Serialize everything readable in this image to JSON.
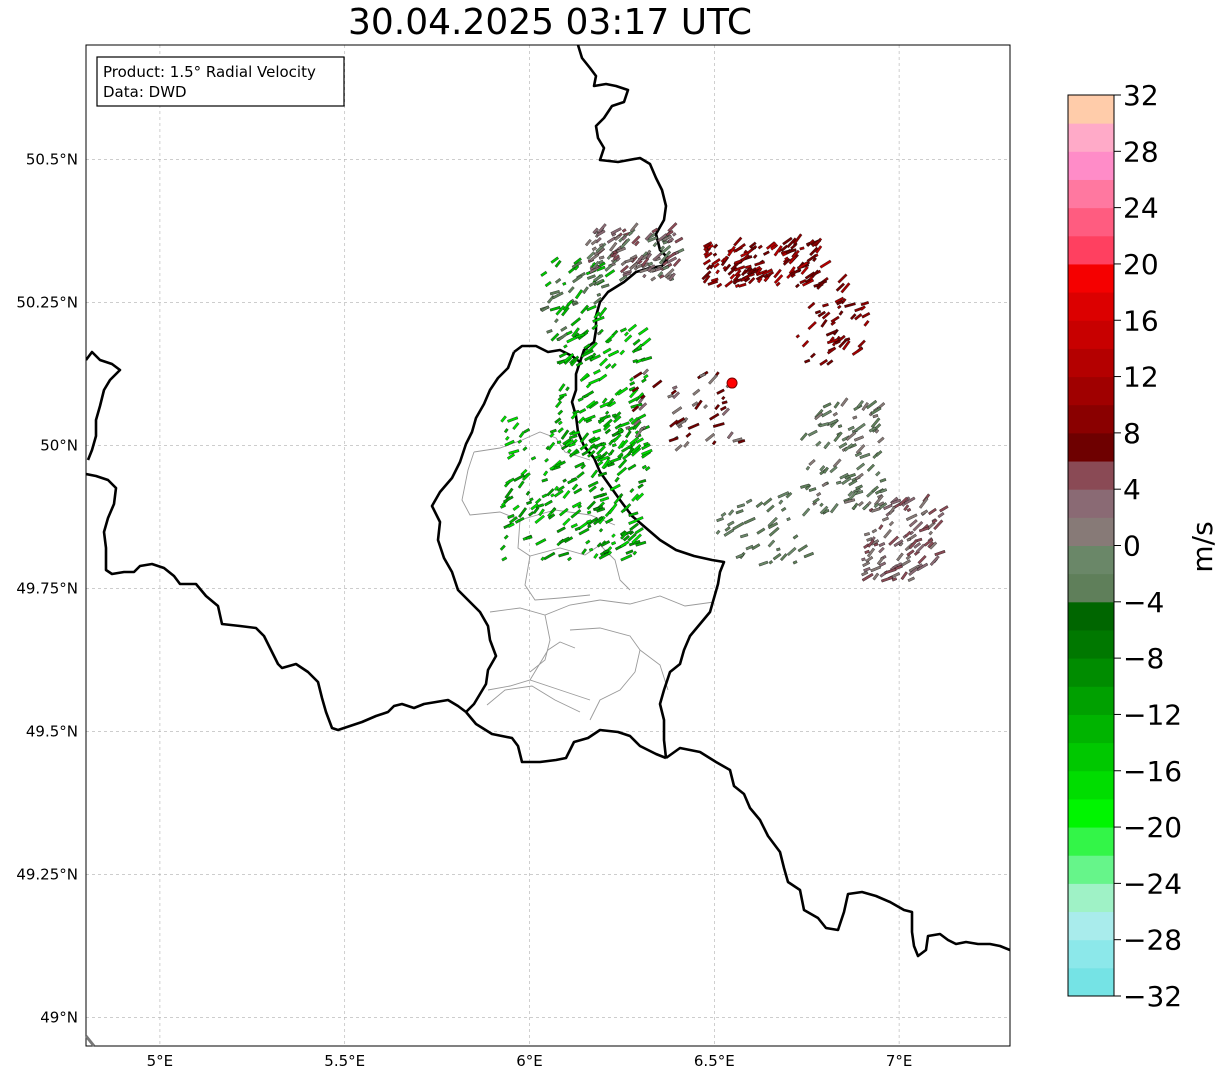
{
  "title": "30.04.2025 03:17 UTC",
  "info_box": {
    "product": "Product: 1.5° Radial Velocity",
    "source": "Data: DWD"
  },
  "map": {
    "extent": {
      "lon": [
        4.8,
        7.3
      ],
      "lat": [
        48.95,
        50.7
      ]
    },
    "lon_ticks": [
      {
        "value": 5.0,
        "label": "5°E"
      },
      {
        "value": 5.5,
        "label": "5.5°E"
      },
      {
        "value": 6.0,
        "label": "6°E"
      },
      {
        "value": 6.5,
        "label": "6.5°E"
      },
      {
        "value": 7.0,
        "label": "7°E"
      }
    ],
    "lat_ticks": [
      {
        "value": 49.0,
        "label": "49°N"
      },
      {
        "value": 49.25,
        "label": "49.25°N"
      },
      {
        "value": 49.5,
        "label": "49.5°N"
      },
      {
        "value": 49.75,
        "label": "49.75°N"
      },
      {
        "value": 50.0,
        "label": "50°N"
      },
      {
        "value": 50.25,
        "label": "50.25°N"
      },
      {
        "value": 50.5,
        "label": "50.5°N"
      }
    ],
    "radar_site": {
      "lon": 6.548,
      "lat": 50.109,
      "color": "#ff0000"
    }
  },
  "colorbar": {
    "unit": "m/s",
    "vmin": -32,
    "vmax": 32,
    "tick_labels": [
      "−32",
      "−28",
      "−24",
      "−20",
      "−16",
      "−12",
      "−8",
      "−4",
      "0",
      "4",
      "8",
      "12",
      "16",
      "20",
      "24",
      "28",
      "32"
    ],
    "colors": [
      "#75e3e5",
      "#8ce8ea",
      "#a9ecec",
      "#9ff2c6",
      "#66f58a",
      "#33f548",
      "#00f500",
      "#00dd00",
      "#00c800",
      "#00b400",
      "#00a000",
      "#008c00",
      "#007800",
      "#006600",
      "#5f7f5a",
      "#6a8768",
      "#877a77",
      "#8a6a74",
      "#8a4a55",
      "#6e0000",
      "#8a0000",
      "#a00000",
      "#b40000",
      "#c80000",
      "#dc0000",
      "#f50000",
      "#ff4060",
      "#ff5c80",
      "#ff78a0",
      "#ff8cc8",
      "#ffaac8",
      "#ffccaa"
    ]
  }
}
